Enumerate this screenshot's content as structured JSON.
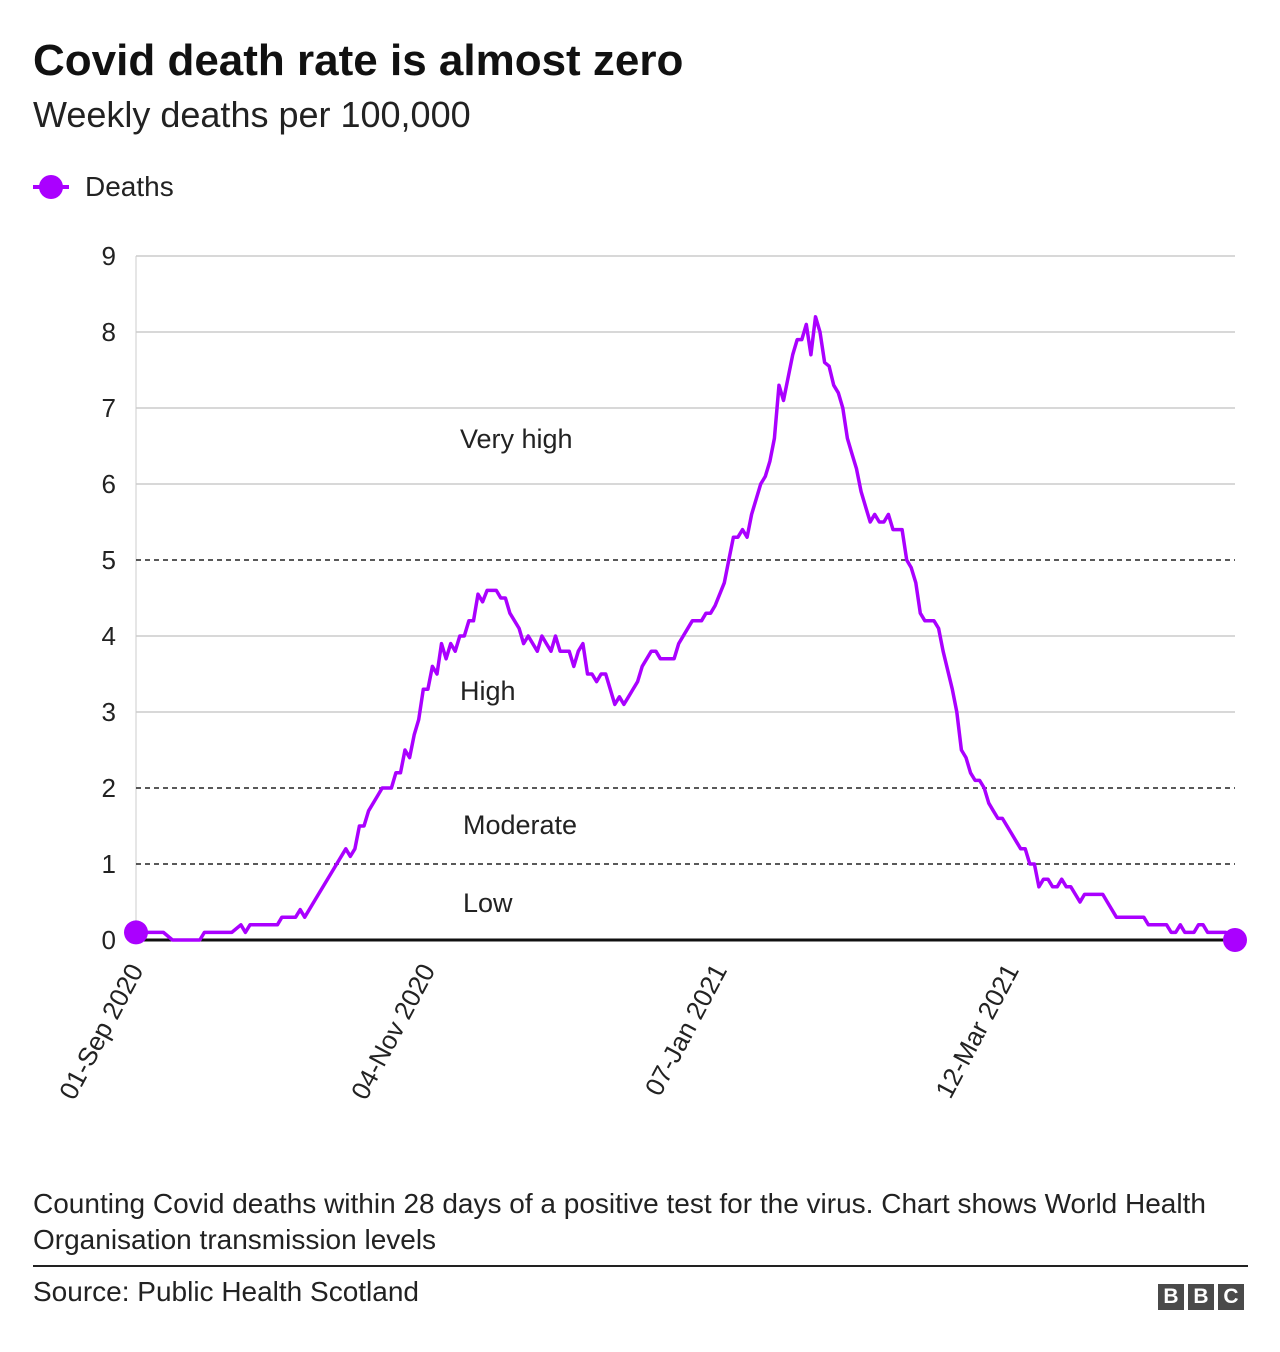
{
  "header": {
    "title": "Covid death rate is almost zero",
    "subtitle": "Weekly deaths per 100,000"
  },
  "legend": {
    "label": "Deaths",
    "color": "#aa00ff"
  },
  "footer": {
    "note": "Counting Covid deaths within 28 days of a positive test for the virus. Chart shows World Health Organisation transmission levels",
    "source": "Source: Public Health Scotland",
    "logo_letters": [
      "B",
      "B",
      "C"
    ]
  },
  "chart_data": {
    "type": "line",
    "title": "Covid death rate is almost zero",
    "subtitle": "Weekly deaths per 100,000",
    "xlabel": "",
    "ylabel": "",
    "xlim": [
      "2020-09-01",
      "2021-04-30"
    ],
    "ylim": [
      0,
      9
    ],
    "yticks": [
      0,
      1,
      2,
      3,
      4,
      5,
      6,
      7,
      8,
      9
    ],
    "xtick_labels": [
      {
        "date": "2020-09-01",
        "label": "01-Sep 2020"
      },
      {
        "date": "2020-11-04",
        "label": "04-Nov 2020"
      },
      {
        "date": "2021-01-07",
        "label": "07-Jan 2021"
      },
      {
        "date": "2021-03-12",
        "label": "12-Mar 2021"
      }
    ],
    "grid": true,
    "legend_position": "top-left",
    "thresholds": [
      {
        "value": 1,
        "style": "dashed"
      },
      {
        "value": 2,
        "style": "dashed"
      },
      {
        "value": 5,
        "style": "dashed"
      }
    ],
    "bands": [
      {
        "label": "Low",
        "y": 0.5
      },
      {
        "label": "Moderate",
        "y": 1.5
      },
      {
        "label": "High",
        "y": 3.5
      },
      {
        "label": "Very high",
        "y": 6.7
      }
    ],
    "series": [
      {
        "name": "Deaths",
        "color": "#aa00ff",
        "marker_endpoints": true,
        "points": [
          [
            "2020-09-01",
            0.1
          ],
          [
            "2020-09-04",
            0.1
          ],
          [
            "2020-09-07",
            0.1
          ],
          [
            "2020-09-09",
            0.0
          ],
          [
            "2020-09-12",
            0.0
          ],
          [
            "2020-09-15",
            0.0
          ],
          [
            "2020-09-16",
            0.1
          ],
          [
            "2020-09-19",
            0.1
          ],
          [
            "2020-09-22",
            0.1
          ],
          [
            "2020-09-24",
            0.2
          ],
          [
            "2020-09-25",
            0.1
          ],
          [
            "2020-09-26",
            0.2
          ],
          [
            "2020-09-29",
            0.2
          ],
          [
            "2020-10-02",
            0.2
          ],
          [
            "2020-10-03",
            0.3
          ],
          [
            "2020-10-06",
            0.3
          ],
          [
            "2020-10-07",
            0.4
          ],
          [
            "2020-10-08",
            0.3
          ],
          [
            "2020-10-11",
            0.6
          ],
          [
            "2020-10-14",
            0.9
          ],
          [
            "2020-10-17",
            1.2
          ],
          [
            "2020-10-18",
            1.1
          ],
          [
            "2020-10-19",
            1.2
          ],
          [
            "2020-10-20",
            1.5
          ],
          [
            "2020-10-21",
            1.5
          ],
          [
            "2020-10-22",
            1.7
          ],
          [
            "2020-10-24",
            1.9
          ],
          [
            "2020-10-25",
            2.0
          ],
          [
            "2020-10-27",
            2.0
          ],
          [
            "2020-10-28",
            2.2
          ],
          [
            "2020-10-29",
            2.2
          ],
          [
            "2020-10-30",
            2.5
          ],
          [
            "2020-10-31",
            2.4
          ],
          [
            "2020-11-01",
            2.7
          ],
          [
            "2020-11-02",
            2.9
          ],
          [
            "2020-11-03",
            3.3
          ],
          [
            "2020-11-04",
            3.3
          ],
          [
            "2020-11-05",
            3.6
          ],
          [
            "2020-11-06",
            3.5
          ],
          [
            "2020-11-07",
            3.9
          ],
          [
            "2020-11-08",
            3.7
          ],
          [
            "2020-11-09",
            3.9
          ],
          [
            "2020-11-10",
            3.8
          ],
          [
            "2020-11-11",
            4.0
          ],
          [
            "2020-11-12",
            4.0
          ],
          [
            "2020-11-13",
            4.2
          ],
          [
            "2020-11-14",
            4.2
          ],
          [
            "2020-11-15",
            4.55
          ],
          [
            "2020-11-16",
            4.45
          ],
          [
            "2020-11-17",
            4.6
          ],
          [
            "2020-11-19",
            4.6
          ],
          [
            "2020-11-20",
            4.5
          ],
          [
            "2020-11-21",
            4.5
          ],
          [
            "2020-11-22",
            4.3
          ],
          [
            "2020-11-24",
            4.1
          ],
          [
            "2020-11-25",
            3.9
          ],
          [
            "2020-11-26",
            4.0
          ],
          [
            "2020-11-28",
            3.8
          ],
          [
            "2020-11-29",
            4.0
          ],
          [
            "2020-11-30",
            3.9
          ],
          [
            "2020-12-01",
            3.8
          ],
          [
            "2020-12-02",
            4.0
          ],
          [
            "2020-12-03",
            3.8
          ],
          [
            "2020-12-05",
            3.8
          ],
          [
            "2020-12-06",
            3.6
          ],
          [
            "2020-12-07",
            3.8
          ],
          [
            "2020-12-08",
            3.9
          ],
          [
            "2020-12-09",
            3.5
          ],
          [
            "2020-12-10",
            3.5
          ],
          [
            "2020-12-11",
            3.4
          ],
          [
            "2020-12-12",
            3.5
          ],
          [
            "2020-12-13",
            3.5
          ],
          [
            "2020-12-15",
            3.1
          ],
          [
            "2020-12-16",
            3.2
          ],
          [
            "2020-12-17",
            3.1
          ],
          [
            "2020-12-18",
            3.2
          ],
          [
            "2020-12-20",
            3.4
          ],
          [
            "2020-12-21",
            3.6
          ],
          [
            "2020-12-23",
            3.8
          ],
          [
            "2020-12-24",
            3.8
          ],
          [
            "2020-12-25",
            3.7
          ],
          [
            "2020-12-28",
            3.7
          ],
          [
            "2020-12-29",
            3.9
          ],
          [
            "2021-01-01",
            4.2
          ],
          [
            "2021-01-03",
            4.2
          ],
          [
            "2021-01-04",
            4.3
          ],
          [
            "2021-01-05",
            4.3
          ],
          [
            "2021-01-06",
            4.4
          ],
          [
            "2021-01-08",
            4.7
          ],
          [
            "2021-01-09",
            5.0
          ],
          [
            "2021-01-10",
            5.3
          ],
          [
            "2021-01-11",
            5.3
          ],
          [
            "2021-01-12",
            5.4
          ],
          [
            "2021-01-13",
            5.3
          ],
          [
            "2021-01-14",
            5.6
          ],
          [
            "2021-01-16",
            6.0
          ],
          [
            "2021-01-17",
            6.1
          ],
          [
            "2021-01-18",
            6.3
          ],
          [
            "2021-01-19",
            6.6
          ],
          [
            "2021-01-20",
            7.3
          ],
          [
            "2021-01-21",
            7.1
          ],
          [
            "2021-01-22",
            7.4
          ],
          [
            "2021-01-23",
            7.7
          ],
          [
            "2021-01-24",
            7.9
          ],
          [
            "2021-01-25",
            7.9
          ],
          [
            "2021-01-26",
            8.1
          ],
          [
            "2021-01-27",
            7.7
          ],
          [
            "2021-01-28",
            8.2
          ],
          [
            "2021-01-29",
            8.0
          ],
          [
            "2021-01-30",
            7.6
          ],
          [
            "2021-01-31",
            7.55
          ],
          [
            "2021-02-01",
            7.3
          ],
          [
            "2021-02-02",
            7.2
          ],
          [
            "2021-02-03",
            7.0
          ],
          [
            "2021-02-04",
            6.6
          ],
          [
            "2021-02-05",
            6.4
          ],
          [
            "2021-02-06",
            6.2
          ],
          [
            "2021-02-07",
            5.9
          ],
          [
            "2021-02-08",
            5.7
          ],
          [
            "2021-02-09",
            5.5
          ],
          [
            "2021-02-10",
            5.6
          ],
          [
            "2021-02-11",
            5.5
          ],
          [
            "2021-02-12",
            5.5
          ],
          [
            "2021-02-13",
            5.6
          ],
          [
            "2021-02-14",
            5.4
          ],
          [
            "2021-02-16",
            5.4
          ],
          [
            "2021-02-17",
            5.0
          ],
          [
            "2021-02-18",
            4.9
          ],
          [
            "2021-02-19",
            4.7
          ],
          [
            "2021-02-20",
            4.3
          ],
          [
            "2021-02-21",
            4.2
          ],
          [
            "2021-02-23",
            4.2
          ],
          [
            "2021-02-24",
            4.1
          ],
          [
            "2021-02-25",
            3.8
          ],
          [
            "2021-02-27",
            3.3
          ],
          [
            "2021-02-28",
            3.0
          ],
          [
            "2021-03-01",
            2.5
          ],
          [
            "2021-03-02",
            2.4
          ],
          [
            "2021-03-03",
            2.2
          ],
          [
            "2021-03-04",
            2.1
          ],
          [
            "2021-03-05",
            2.1
          ],
          [
            "2021-03-06",
            2.0
          ],
          [
            "2021-03-07",
            1.8
          ],
          [
            "2021-03-08",
            1.7
          ],
          [
            "2021-03-09",
            1.6
          ],
          [
            "2021-03-10",
            1.6
          ],
          [
            "2021-03-11",
            1.5
          ],
          [
            "2021-03-12",
            1.4
          ],
          [
            "2021-03-13",
            1.3
          ],
          [
            "2021-03-14",
            1.2
          ],
          [
            "2021-03-15",
            1.2
          ],
          [
            "2021-03-16",
            1.0
          ],
          [
            "2021-03-17",
            1.0
          ],
          [
            "2021-03-18",
            0.7
          ],
          [
            "2021-03-19",
            0.8
          ],
          [
            "2021-03-20",
            0.8
          ],
          [
            "2021-03-21",
            0.7
          ],
          [
            "2021-03-22",
            0.7
          ],
          [
            "2021-03-23",
            0.8
          ],
          [
            "2021-03-24",
            0.7
          ],
          [
            "2021-03-25",
            0.7
          ],
          [
            "2021-03-26",
            0.6
          ],
          [
            "2021-03-27",
            0.5
          ],
          [
            "2021-03-28",
            0.6
          ],
          [
            "2021-04-01",
            0.6
          ],
          [
            "2021-04-02",
            0.5
          ],
          [
            "2021-04-04",
            0.3
          ],
          [
            "2021-04-08",
            0.3
          ],
          [
            "2021-04-10",
            0.3
          ],
          [
            "2021-04-11",
            0.2
          ],
          [
            "2021-04-15",
            0.2
          ],
          [
            "2021-04-16",
            0.1
          ],
          [
            "2021-04-17",
            0.1
          ],
          [
            "2021-04-18",
            0.2
          ],
          [
            "2021-04-19",
            0.1
          ],
          [
            "2021-04-21",
            0.1
          ],
          [
            "2021-04-22",
            0.2
          ],
          [
            "2021-04-23",
            0.2
          ],
          [
            "2021-04-24",
            0.1
          ],
          [
            "2021-04-26",
            0.1
          ],
          [
            "2021-04-28",
            0.1
          ],
          [
            "2021-04-29",
            0.0
          ],
          [
            "2021-04-30",
            0.0
          ]
        ]
      }
    ]
  }
}
